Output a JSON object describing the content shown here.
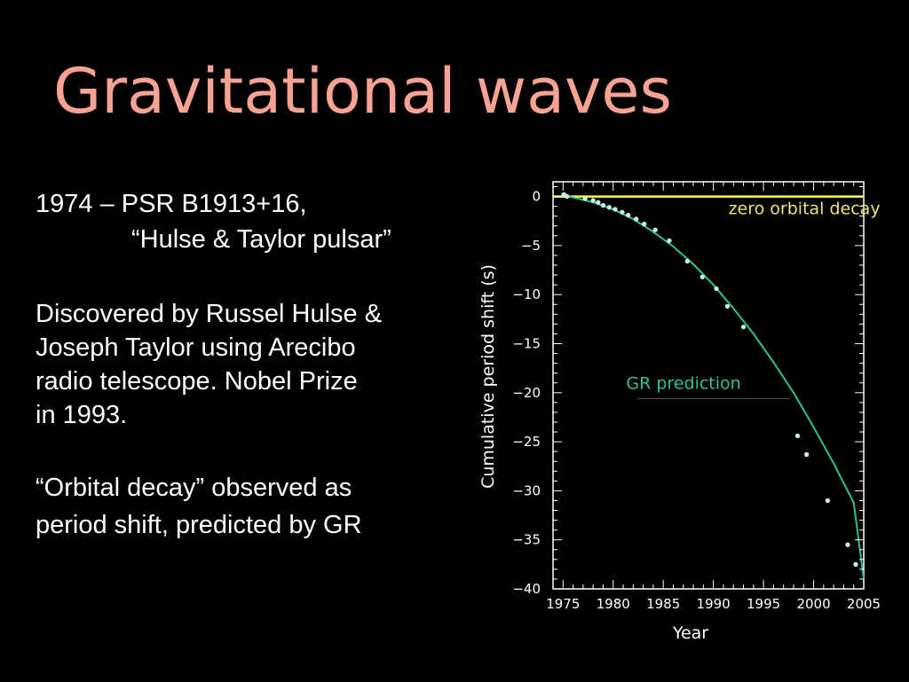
{
  "slide": {
    "title": "Gravitational waves",
    "block1": {
      "line1": "1974 – PSR B1913+16,",
      "line2": "“Hulse & Taylor pulsar”"
    },
    "block2": {
      "line1": "Discovered by Russel Hulse &",
      "line2": "Joseph Taylor using Arecibo",
      "line3": "radio telescope.  Nobel Prize",
      "line4": "in 1993."
    },
    "block3": {
      "line1": "“Orbital decay” observed as",
      "line2": "period shift, predicted by GR"
    }
  },
  "chart_data": {
    "type": "scatter",
    "title": "",
    "xlabel": "Year",
    "ylabel": "Cumulative period shift (s)",
    "xlim": [
      1974,
      2005
    ],
    "ylim": [
      -40,
      1.5
    ],
    "x_ticks": [
      1975,
      1980,
      1985,
      1990,
      1995,
      2000,
      2005
    ],
    "y_ticks": [
      0,
      -5,
      -10,
      -15,
      -20,
      -25,
      -30,
      -35,
      -40
    ],
    "y_tick_labels": [
      "0",
      "−5",
      "−10",
      "−15",
      "−20",
      "−25",
      "−30",
      "−35",
      "−40"
    ],
    "grid": false,
    "series": [
      {
        "name": "zero orbital decay",
        "kind": "line",
        "color": "#ffff33",
        "x": [
          1974,
          2005
        ],
        "y": [
          0,
          0
        ]
      },
      {
        "name": "GR prediction",
        "kind": "line",
        "color": "#2ebfa0",
        "x": [
          1974.8,
          1976,
          1978,
          1980,
          1982,
          1984,
          1986,
          1988,
          1990,
          1992,
          1994,
          1996,
          1998,
          2000,
          2002,
          2004,
          2005
        ],
        "y": [
          0.3,
          -0.1,
          -0.6,
          -1.3,
          -2.3,
          -3.6,
          -5.1,
          -6.9,
          -9.0,
          -11.4,
          -14.0,
          -16.9,
          -20.0,
          -23.5,
          -27.2,
          -31.2,
          -39.0
        ]
      },
      {
        "name": "",
        "kind": "points",
        "color": "#b9f2e6",
        "x": [
          1975.1,
          1975.4,
          1977.2,
          1978.0,
          1978.5,
          1979.0,
          1979.6,
          1980.2,
          1980.9,
          1981.5,
          1982.3,
          1983.1,
          1984.2,
          1985.6,
          1987.4,
          1988.9,
          1990.3,
          1991.4,
          1993.0,
          1998.4,
          1999.3,
          2001.4,
          2003.4,
          2004.2
        ],
        "y": [
          0.2,
          0.0,
          -0.2,
          -0.4,
          -0.6,
          -0.9,
          -1.1,
          -1.3,
          -1.6,
          -1.9,
          -2.3,
          -2.8,
          -3.4,
          -4.5,
          -6.6,
          -8.2,
          -9.4,
          -11.2,
          -13.3,
          -24.4,
          -26.3,
          -31.0,
          -35.5,
          -37.5
        ]
      }
    ],
    "annotations": [
      {
        "text": "zero orbital decay",
        "color": "#f3e27a",
        "x": 1991.5,
        "y": -1.8
      },
      {
        "text": "GR prediction",
        "color": "#2ebfa0",
        "x": 1981.3,
        "y": -19.6
      }
    ],
    "colors": {
      "plot_background": "#000000",
      "frame": "#ffffff"
    }
  }
}
